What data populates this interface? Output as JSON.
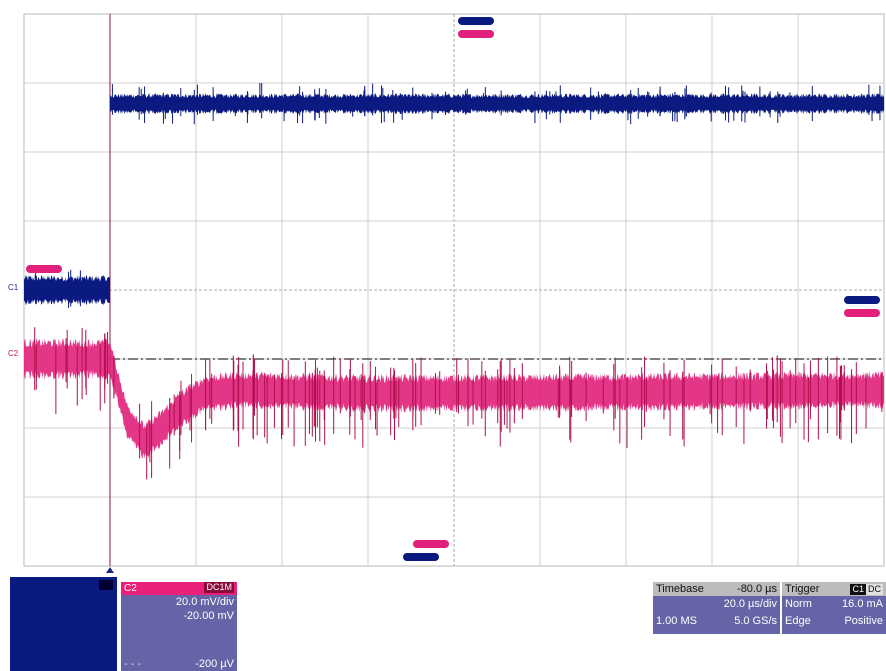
{
  "chart_data": {
    "type": "line",
    "grid": true,
    "divisions": {
      "x": 10,
      "y": 8
    },
    "xlim": [
      -80.0,
      120.0
    ],
    "x_unit": "µs",
    "trigger_x": -60.0,
    "series": [
      {
        "color": "#0b1a80",
        "unit": "divisions",
        "segments": [
          {
            "x": [
              -80.0,
              -60.0
            ],
            "y": [
              0.0,
              0.0
            ],
            "noise": 0.22
          },
          {
            "x": [
              -60.0,
              120.0
            ],
            "y": [
              2.7,
              2.7
            ],
            "noise": 0.15
          }
        ]
      },
      {
        "color": "#e0207a",
        "unit": "divisions",
        "segments": [
          {
            "x": [
              -80.0,
              -60.0
            ],
            "y": [
              -1.0,
              -1.0
            ],
            "noise": 0.3
          },
          {
            "x": [
              -60.0,
              -56.0,
              -52.0,
              -48.0,
              -44.0,
              -38.0,
              -30.0,
              0.0,
              60.0,
              120.0
            ],
            "y": [
              -1.0,
              -1.9,
              -2.2,
              -2.0,
              -1.75,
              -1.5,
              -1.45,
              -1.5,
              -1.48,
              -1.45
            ],
            "noise": 0.28
          }
        ]
      }
    ],
    "ref_line_y": -1.0,
    "channel1": {
      "label": "C1"
    },
    "channel2": {
      "label": "C2",
      "coupling": "DC1M",
      "scale": "20.0 mV/div",
      "offset": "-20.00 mV",
      "reference": "-200 µV"
    },
    "timebase": {
      "label": "Timebase",
      "delay": "-80.0 µs",
      "scale": "20.0 µs/div",
      "record": "1.00 MS",
      "rate": "5.0 GS/s"
    },
    "trigger": {
      "label": "Trigger",
      "channel": "C1",
      "coupling": "DC",
      "mode": "Norm",
      "level": "16.0 mA",
      "type": "Edge",
      "slope": "Positive"
    }
  }
}
